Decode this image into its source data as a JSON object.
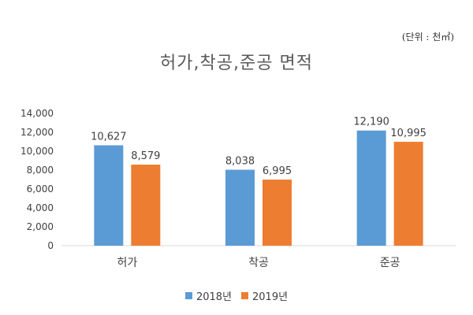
{
  "unit_note": "(단위 : 천㎡)",
  "chart_data": {
    "type": "bar",
    "title": "허가,착공,준공 면적",
    "categories": [
      "허가",
      "착공",
      "준공"
    ],
    "series": [
      {
        "name": "2018년",
        "color": "#5b9bd5",
        "values": [
          10627,
          8038,
          12190
        ]
      },
      {
        "name": "2019년",
        "color": "#ed7d31",
        "values": [
          8579,
          6995,
          10995
        ]
      }
    ],
    "ylim": [
      0,
      14000
    ],
    "yticks": [
      0,
      2000,
      4000,
      6000,
      8000,
      10000,
      12000,
      14000
    ],
    "grid": false,
    "legend": "bottom"
  }
}
